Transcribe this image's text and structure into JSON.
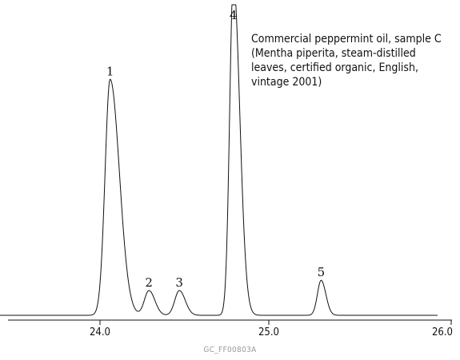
{
  "chart_data": {
    "type": "line",
    "title": "",
    "xlabel": "",
    "ylabel": "",
    "xlim": [
      23.4,
      26.0
    ],
    "x_ticks": [
      "24.0",
      "25.0",
      "26.0"
    ],
    "grid": false,
    "legend": "none",
    "caption_lines": [
      "Commercial peppermint oil, sample C",
      "(Mentha piperita, steam-distilled",
      "leaves, certified organic, English,",
      "vintage 2001)"
    ],
    "figure_code": "GC_FF00803A",
    "peaks": [
      {
        "label": "1",
        "x": 24.06,
        "height": 0.81
      },
      {
        "label": "2",
        "x": 24.29,
        "height": 0.085
      },
      {
        "label": "3",
        "x": 24.47,
        "height": 0.085
      },
      {
        "label": "4",
        "x": 24.79,
        "height": 1.15
      },
      {
        "label": "5",
        "x": 25.31,
        "height": 0.12
      }
    ],
    "line_color": "#111111"
  }
}
